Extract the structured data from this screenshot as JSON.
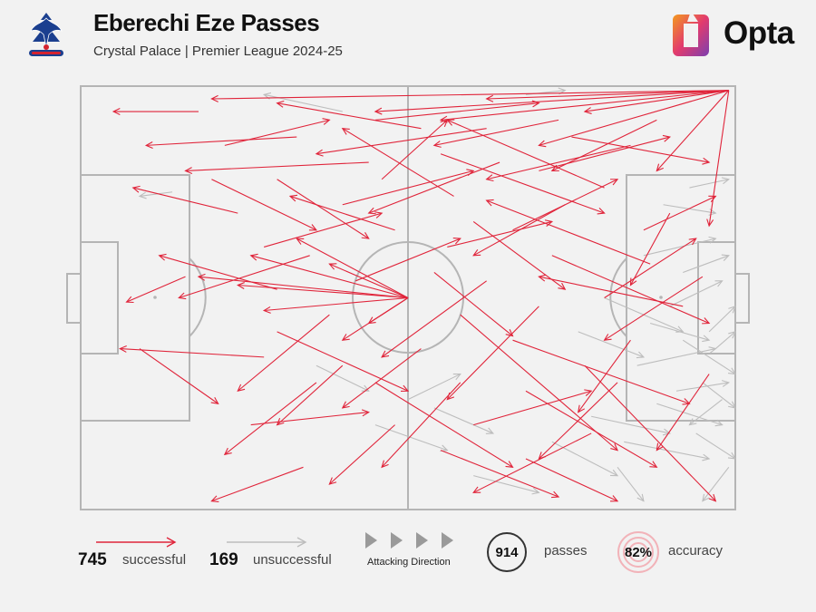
{
  "header": {
    "title": "Eberechi Eze Passes",
    "subtitle": "Crystal Palace | Premier League 2024-25",
    "brand": "Opta"
  },
  "colors": {
    "successful": "#e0243a",
    "unsuccessful": "#bdbdbd",
    "pitch_lines": "#b5b5b5",
    "background": "#f2f2f2"
  },
  "legend": {
    "successful_count": "745",
    "successful_label": "successful",
    "unsuccessful_count": "169",
    "unsuccessful_label": "unsuccessful",
    "attacking_direction_label": "Attacking Direction",
    "passes_count": "914",
    "passes_label": "passes",
    "accuracy_value": "82%",
    "accuracy_label": "accuracy"
  },
  "chart_data": {
    "type": "pass-map",
    "xlim": [
      0,
      100
    ],
    "ylim": [
      0,
      100
    ],
    "attacking_direction": "left-to-right",
    "series": [
      {
        "name": "successful",
        "count": 745,
        "passes": [
          [
            99,
            1,
            96,
            33
          ],
          [
            99,
            1,
            20,
            3
          ],
          [
            99,
            1,
            55,
            8
          ],
          [
            99,
            1,
            70,
            14
          ],
          [
            99,
            1,
            88,
            20
          ],
          [
            99,
            1,
            62,
            3
          ],
          [
            99,
            1,
            77,
            6
          ],
          [
            99,
            1,
            45,
            6
          ],
          [
            50,
            50,
            24,
            47
          ],
          [
            50,
            50,
            18,
            45
          ],
          [
            50,
            50,
            28,
            53
          ],
          [
            50,
            50,
            38,
            42
          ],
          [
            50,
            50,
            44,
            56
          ],
          [
            50,
            50,
            33,
            36
          ],
          [
            50,
            50,
            40,
            60
          ],
          [
            50,
            50,
            26,
            40
          ],
          [
            30,
            22,
            44,
            36
          ],
          [
            55,
            16,
            80,
            30
          ],
          [
            72,
            40,
            96,
            56
          ],
          [
            66,
            60,
            93,
            75
          ],
          [
            58,
            54,
            82,
            86
          ],
          [
            45,
            70,
            66,
            90
          ],
          [
            35,
            40,
            15,
            50
          ],
          [
            28,
            64,
            6,
            62
          ],
          [
            36,
            70,
            22,
            87
          ],
          [
            44,
            18,
            16,
            20
          ],
          [
            62,
            10,
            36,
            16
          ],
          [
            80,
            24,
            56,
            8
          ],
          [
            87,
            42,
            62,
            27
          ],
          [
            92,
            52,
            70,
            45
          ],
          [
            77,
            66,
            97,
            98
          ],
          [
            55,
            86,
            73,
            97
          ],
          [
            48,
            80,
            38,
            94
          ],
          [
            24,
            30,
            8,
            24
          ],
          [
            18,
            6,
            5,
            6
          ],
          [
            33,
            12,
            10,
            14
          ],
          [
            60,
            32,
            74,
            48
          ],
          [
            70,
            20,
            90,
            12
          ],
          [
            40,
            28,
            60,
            20
          ],
          [
            26,
            80,
            44,
            77
          ],
          [
            9,
            62,
            21,
            75
          ],
          [
            16,
            45,
            7,
            51
          ],
          [
            54,
            44,
            66,
            59
          ],
          [
            78,
            82,
            60,
            96
          ],
          [
            68,
            72,
            88,
            90
          ],
          [
            84,
            60,
            76,
            77
          ],
          [
            90,
            30,
            84,
            47
          ],
          [
            75,
            12,
            96,
            18
          ],
          [
            45,
            8,
            70,
            4
          ],
          [
            22,
            14,
            38,
            8
          ],
          [
            30,
            58,
            50,
            72
          ],
          [
            42,
            46,
            58,
            36
          ],
          [
            62,
            46,
            46,
            64
          ],
          [
            70,
            52,
            56,
            74
          ],
          [
            84,
            14,
            62,
            22
          ],
          [
            96,
            68,
            88,
            86
          ],
          [
            52,
            62,
            40,
            76
          ],
          [
            38,
            54,
            24,
            72
          ],
          [
            57,
            26,
            40,
            10
          ],
          [
            66,
            34,
            82,
            22
          ],
          [
            73,
            8,
            54,
            14
          ],
          [
            86,
            34,
            97,
            26
          ],
          [
            48,
            34,
            32,
            26
          ],
          [
            34,
            90,
            20,
            98
          ],
          [
            60,
            80,
            78,
            72
          ],
          [
            80,
            50,
            94,
            36
          ],
          [
            64,
            18,
            44,
            30
          ],
          [
            46,
            22,
            56,
            8
          ],
          [
            28,
            38,
            46,
            30
          ],
          [
            20,
            22,
            36,
            34
          ],
          [
            58,
            70,
            46,
            90
          ],
          [
            74,
            28,
            60,
            40
          ],
          [
            88,
            8,
            72,
            20
          ],
          [
            95,
            45,
            80,
            60
          ],
          [
            40,
            66,
            30,
            80
          ],
          [
            52,
            10,
            30,
            4
          ],
          [
            68,
            88,
            82,
            98
          ],
          [
            30,
            48,
            12,
            40
          ],
          [
            56,
            38,
            72,
            32
          ],
          [
            82,
            70,
            70,
            88
          ]
        ]
      },
      {
        "name": "unsuccessful",
        "count": 169,
        "passes": [
          [
            95,
            70,
            100,
            76
          ],
          [
            92,
            60,
            100,
            68
          ],
          [
            88,
            75,
            98,
            80
          ],
          [
            90,
            52,
            98,
            46
          ],
          [
            96,
            58,
            100,
            52
          ],
          [
            85,
            66,
            97,
            62
          ],
          [
            94,
            82,
            100,
            88
          ],
          [
            86,
            40,
            97,
            36
          ],
          [
            80,
            50,
            92,
            58
          ],
          [
            91,
            72,
            99,
            70
          ],
          [
            83,
            84,
            96,
            88
          ],
          [
            89,
            28,
            97,
            30
          ],
          [
            40,
            6,
            28,
            2
          ],
          [
            36,
            66,
            44,
            72
          ],
          [
            45,
            80,
            56,
            86
          ],
          [
            14,
            25,
            9,
            26
          ],
          [
            97,
            62,
            100,
            58
          ],
          [
            92,
            44,
            99,
            40
          ],
          [
            99,
            90,
            95,
            98
          ],
          [
            78,
            78,
            90,
            82
          ],
          [
            87,
            56,
            96,
            60
          ],
          [
            54,
            76,
            63,
            82
          ],
          [
            82,
            90,
            86,
            98
          ],
          [
            93,
            24,
            99,
            22
          ],
          [
            76,
            58,
            86,
            64
          ],
          [
            50,
            74,
            58,
            68
          ],
          [
            98,
            74,
            93,
            80
          ],
          [
            72,
            84,
            82,
            92
          ],
          [
            60,
            92,
            70,
            96
          ],
          [
            68,
            2,
            74,
            1
          ]
        ]
      }
    ]
  }
}
